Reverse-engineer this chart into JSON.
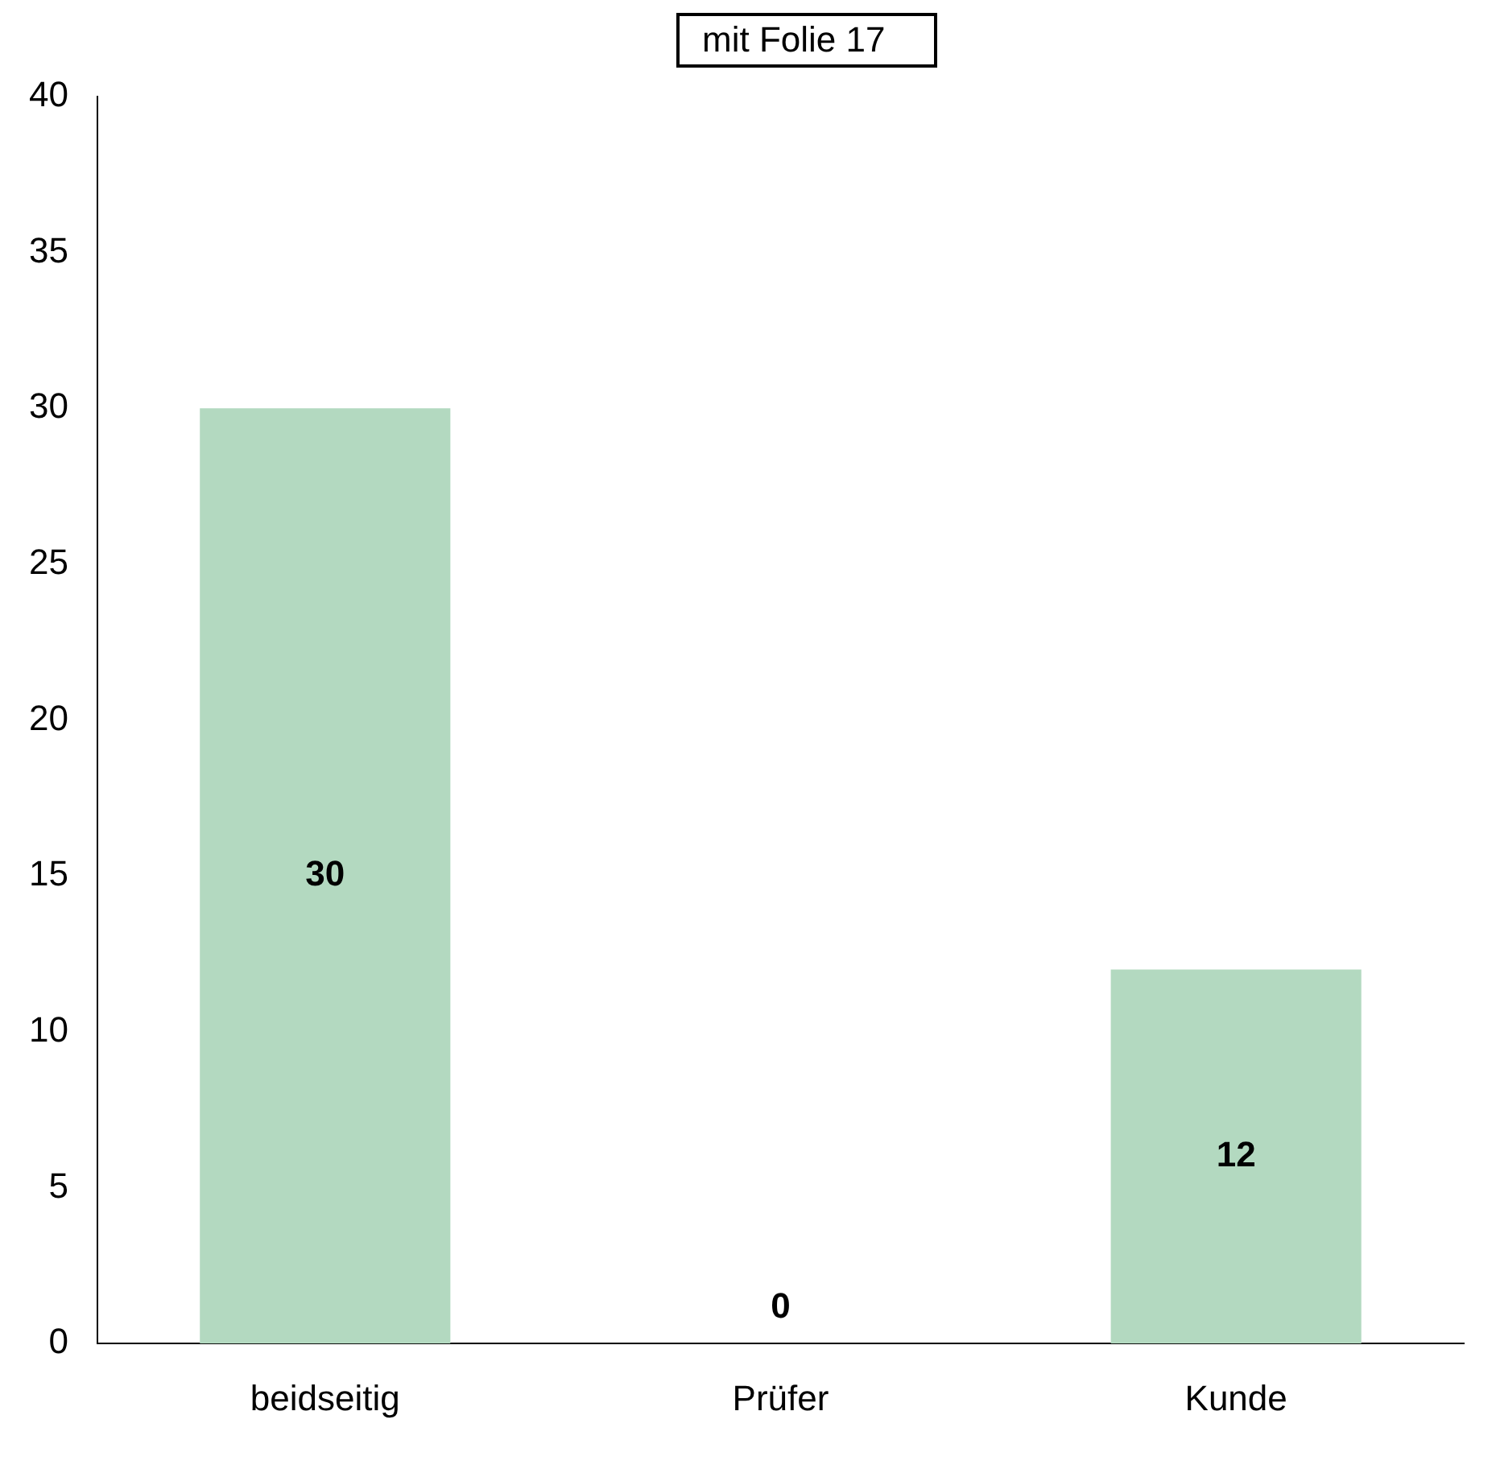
{
  "chart_data": {
    "type": "bar",
    "categories": [
      "beidseitig",
      "Prüfer",
      "Kunde"
    ],
    "values": [
      30,
      0,
      12
    ],
    "color": "#b3d9c0",
    "ylim": [
      0,
      40
    ],
    "yticks": [
      0,
      5,
      10,
      15,
      20,
      25,
      30,
      35,
      40
    ],
    "grid": false,
    "legend": false,
    "data_labels": true,
    "annotations": [
      "mit Folie 17"
    ]
  }
}
